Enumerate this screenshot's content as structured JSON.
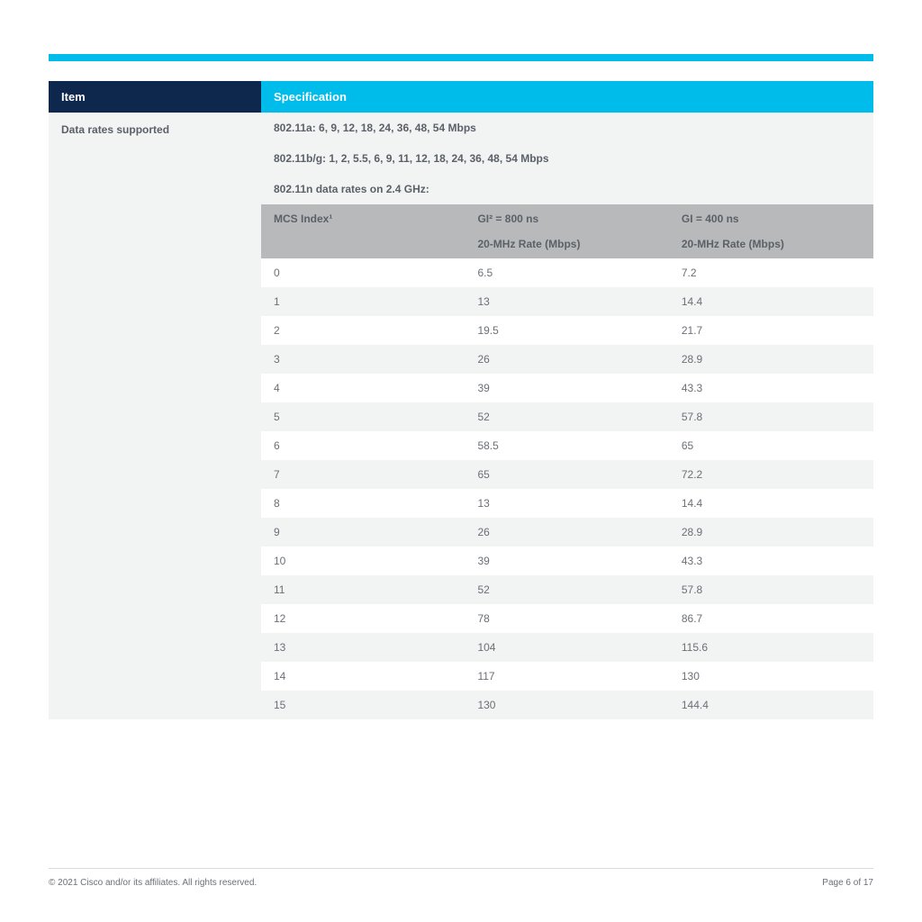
{
  "colors": {
    "accent": "#00bceb",
    "header_dark": "#0d274d",
    "row_alt": "#f2f3f3",
    "subhead_bg": "#b8b9ba",
    "text": "#5b6168",
    "cell_text": "#6a7077",
    "rule": "#d9dadb"
  },
  "header": {
    "item": "Item",
    "spec": "Specification"
  },
  "row_label": "Data rates supported",
  "spec_lines": [
    "802.11a: 6, 9, 12, 18, 24, 36, 48, 54 Mbps",
    "802.11b/g: 1, 2, 5.5, 6, 9, 11, 12, 18, 24, 36, 48, 54 Mbps",
    "802.11n data rates on 2.4 GHz:"
  ],
  "rates": {
    "type": "table",
    "columns": [
      {
        "head": "MCS Index¹",
        "sub": ""
      },
      {
        "head": "GI² = 800 ns",
        "sub": "20-MHz Rate (Mbps)"
      },
      {
        "head": "GI = 400 ns",
        "sub": "20-MHz Rate (Mbps)"
      }
    ],
    "rows": [
      [
        "0",
        "6.5",
        "7.2"
      ],
      [
        "1",
        "13",
        "14.4"
      ],
      [
        "2",
        "19.5",
        "21.7"
      ],
      [
        "3",
        "26",
        "28.9"
      ],
      [
        "4",
        "39",
        "43.3"
      ],
      [
        "5",
        "52",
        "57.8"
      ],
      [
        "6",
        "58.5",
        "65"
      ],
      [
        "7",
        "65",
        "72.2"
      ],
      [
        "8",
        "13",
        "14.4"
      ],
      [
        "9",
        "26",
        "28.9"
      ],
      [
        "10",
        "39",
        "43.3"
      ],
      [
        "11",
        "52",
        "57.8"
      ],
      [
        "12",
        "78",
        "86.7"
      ],
      [
        "13",
        "104",
        "115.6"
      ],
      [
        "14",
        "117",
        "130"
      ],
      [
        "15",
        "130",
        "144.4"
      ]
    ]
  },
  "footer": {
    "copyright": "© 2021 Cisco and/or its affiliates. All rights reserved.",
    "page": "Page 6 of 17"
  }
}
